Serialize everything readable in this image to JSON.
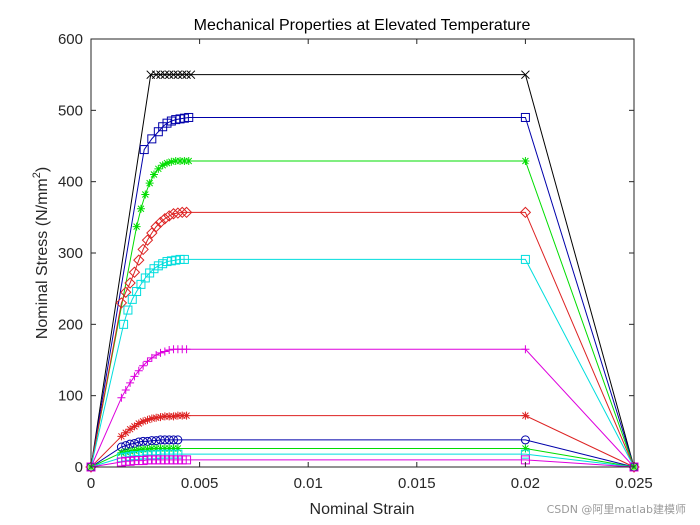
{
  "chart_data": {
    "type": "line",
    "title": "Mechanical Properties at Elevated Temperature",
    "xlabel": "Nominal Strain",
    "ylabel_main": "Nominal Stress (N/mm",
    "ylabel_sup": "2",
    "ylabel_end": ")",
    "xlim": [
      0,
      0.025
    ],
    "ylim": [
      0,
      600
    ],
    "xticks": [
      0,
      0.005,
      0.01,
      0.015,
      0.02,
      0.025
    ],
    "xtick_labels": [
      "0",
      "0.005",
      "0.01",
      "0.015",
      "0.02",
      "0.025"
    ],
    "yticks": [
      0,
      100,
      200,
      300,
      400,
      500,
      600
    ],
    "ytick_labels": [
      "0",
      "100",
      "200",
      "300",
      "400",
      "500",
      "600"
    ],
    "grid": false,
    "series": [
      {
        "color": "#000000",
        "marker": "x",
        "points": [
          [
            0,
            0
          ],
          [
            0.00275,
            550
          ],
          [
            0.003,
            550
          ],
          [
            0.0032,
            550
          ],
          [
            0.0034,
            550
          ],
          [
            0.0036,
            550
          ],
          [
            0.0038,
            550
          ],
          [
            0.004,
            550
          ],
          [
            0.0042,
            550
          ],
          [
            0.0044,
            550
          ],
          [
            0.0046,
            550
          ],
          [
            0.02,
            550
          ],
          [
            0.025,
            0
          ]
        ]
      },
      {
        "color": "#0000aa",
        "marker": "square",
        "points": [
          [
            0,
            0
          ],
          [
            0.00245,
            445
          ],
          [
            0.0028,
            460
          ],
          [
            0.0031,
            470
          ],
          [
            0.0033,
            477
          ],
          [
            0.0035,
            482
          ],
          [
            0.0037,
            485
          ],
          [
            0.0039,
            487
          ],
          [
            0.0041,
            488
          ],
          [
            0.0043,
            489
          ],
          [
            0.0045,
            490
          ],
          [
            0.02,
            490
          ],
          [
            0.025,
            0
          ]
        ]
      },
      {
        "color": "#00dd00",
        "marker": "asterisk",
        "points": [
          [
            0,
            0
          ],
          [
            0.0021,
            337
          ],
          [
            0.0023,
            362
          ],
          [
            0.0025,
            382
          ],
          [
            0.0027,
            398
          ],
          [
            0.0029,
            410
          ],
          [
            0.0031,
            418
          ],
          [
            0.0033,
            423
          ],
          [
            0.0035,
            426
          ],
          [
            0.0037,
            428
          ],
          [
            0.0039,
            429
          ],
          [
            0.0041,
            429
          ],
          [
            0.0043,
            429
          ],
          [
            0.0045,
            429
          ],
          [
            0.02,
            429
          ],
          [
            0.025,
            0
          ]
        ]
      },
      {
        "color": "#dd2222",
        "marker": "diamond",
        "points": [
          [
            0,
            0
          ],
          [
            0.0014,
            230
          ],
          [
            0.0016,
            245
          ],
          [
            0.0018,
            258
          ],
          [
            0.002,
            273
          ],
          [
            0.0022,
            290
          ],
          [
            0.0024,
            305
          ],
          [
            0.0026,
            318
          ],
          [
            0.0028,
            328
          ],
          [
            0.003,
            337
          ],
          [
            0.0032,
            343
          ],
          [
            0.0034,
            348
          ],
          [
            0.0036,
            352
          ],
          [
            0.0038,
            355
          ],
          [
            0.004,
            356
          ],
          [
            0.0042,
            357
          ],
          [
            0.0044,
            357
          ],
          [
            0.02,
            357
          ],
          [
            0.025,
            0
          ]
        ]
      },
      {
        "color": "#00dddd",
        "marker": "square",
        "points": [
          [
            0,
            0
          ],
          [
            0.0015,
            200
          ],
          [
            0.0017,
            220
          ],
          [
            0.0019,
            235
          ],
          [
            0.0021,
            246
          ],
          [
            0.0023,
            256
          ],
          [
            0.0025,
            265
          ],
          [
            0.0027,
            272
          ],
          [
            0.0029,
            278
          ],
          [
            0.0031,
            282
          ],
          [
            0.0033,
            285
          ],
          [
            0.0035,
            288
          ],
          [
            0.0037,
            289
          ],
          [
            0.0039,
            290
          ],
          [
            0.0041,
            291
          ],
          [
            0.0043,
            291
          ],
          [
            0.02,
            291
          ],
          [
            0.025,
            0
          ]
        ]
      },
      {
        "color": "#dd00dd",
        "marker": "plus",
        "points": [
          [
            0,
            0
          ],
          [
            0.0014,
            97
          ],
          [
            0.0016,
            108
          ],
          [
            0.0018,
            118
          ],
          [
            0.002,
            127
          ],
          [
            0.0022,
            135
          ],
          [
            0.0024,
            142
          ],
          [
            0.0026,
            148
          ],
          [
            0.0028,
            153
          ],
          [
            0.003,
            157
          ],
          [
            0.0032,
            160
          ],
          [
            0.0034,
            162
          ],
          [
            0.0036,
            164
          ],
          [
            0.0038,
            165
          ],
          [
            0.004,
            165
          ],
          [
            0.0042,
            165
          ],
          [
            0.0044,
            165
          ],
          [
            0.02,
            165
          ],
          [
            0.025,
            0
          ]
        ]
      },
      {
        "color": "#dd2222",
        "marker": "asterisk",
        "points": [
          [
            0,
            0
          ],
          [
            0.0014,
            43
          ],
          [
            0.0016,
            48
          ],
          [
            0.0018,
            53
          ],
          [
            0.002,
            57
          ],
          [
            0.0022,
            61
          ],
          [
            0.0024,
            64
          ],
          [
            0.0026,
            66
          ],
          [
            0.0028,
            68
          ],
          [
            0.003,
            69
          ],
          [
            0.0032,
            70
          ],
          [
            0.0034,
            71
          ],
          [
            0.0036,
            71
          ],
          [
            0.0038,
            71
          ],
          [
            0.004,
            72
          ],
          [
            0.0042,
            72
          ],
          [
            0.0044,
            72
          ],
          [
            0.02,
            72
          ],
          [
            0.025,
            0
          ]
        ]
      },
      {
        "color": "#0000aa",
        "marker": "circle",
        "points": [
          [
            0,
            0
          ],
          [
            0.0014,
            28
          ],
          [
            0.0016,
            30
          ],
          [
            0.0018,
            32
          ],
          [
            0.002,
            33
          ],
          [
            0.0022,
            35
          ],
          [
            0.0024,
            36
          ],
          [
            0.0026,
            36
          ],
          [
            0.0028,
            37
          ],
          [
            0.003,
            37
          ],
          [
            0.0032,
            38
          ],
          [
            0.0034,
            38
          ],
          [
            0.0036,
            38
          ],
          [
            0.0038,
            38
          ],
          [
            0.004,
            38
          ],
          [
            0.02,
            38
          ],
          [
            0.025,
            0
          ]
        ]
      },
      {
        "color": "#00dd00",
        "marker": "asterisk",
        "points": [
          [
            0,
            0
          ],
          [
            0.0014,
            20
          ],
          [
            0.0016,
            21
          ],
          [
            0.0018,
            22
          ],
          [
            0.002,
            23
          ],
          [
            0.0022,
            24
          ],
          [
            0.0024,
            25
          ],
          [
            0.0026,
            25
          ],
          [
            0.0028,
            26
          ],
          [
            0.003,
            26
          ],
          [
            0.0032,
            26
          ],
          [
            0.0034,
            26
          ],
          [
            0.0036,
            26
          ],
          [
            0.0038,
            26
          ],
          [
            0.004,
            26
          ],
          [
            0.02,
            26
          ],
          [
            0.025,
            0
          ]
        ]
      },
      {
        "color": "#00dddd",
        "marker": "square",
        "points": [
          [
            0,
            0
          ],
          [
            0.0014,
            13
          ],
          [
            0.0016,
            14
          ],
          [
            0.0018,
            15
          ],
          [
            0.002,
            16
          ],
          [
            0.0022,
            16
          ],
          [
            0.0024,
            17
          ],
          [
            0.0026,
            17
          ],
          [
            0.0028,
            17
          ],
          [
            0.003,
            17
          ],
          [
            0.0032,
            18
          ],
          [
            0.0034,
            18
          ],
          [
            0.0036,
            18
          ],
          [
            0.0038,
            18
          ],
          [
            0.004,
            18
          ],
          [
            0.02,
            18
          ],
          [
            0.025,
            0
          ]
        ]
      },
      {
        "color": "#dd00dd",
        "marker": "square",
        "points": [
          [
            0,
            0
          ],
          [
            0.0014,
            7
          ],
          [
            0.0016,
            8
          ],
          [
            0.0018,
            8
          ],
          [
            0.002,
            9
          ],
          [
            0.0022,
            9
          ],
          [
            0.0024,
            9
          ],
          [
            0.0026,
            10
          ],
          [
            0.0028,
            10
          ],
          [
            0.003,
            10
          ],
          [
            0.0032,
            10
          ],
          [
            0.0034,
            10
          ],
          [
            0.0036,
            10
          ],
          [
            0.0038,
            10
          ],
          [
            0.004,
            10
          ],
          [
            0.0042,
            10
          ],
          [
            0.0044,
            10
          ],
          [
            0.02,
            10
          ],
          [
            0.025,
            0
          ]
        ]
      }
    ]
  },
  "watermark": "CSDN @阿里matlab建模师"
}
